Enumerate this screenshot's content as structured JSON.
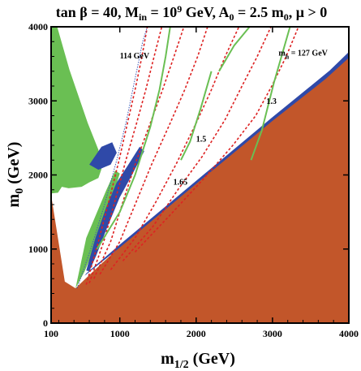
{
  "chart_data": {
    "type": "area",
    "title": {
      "main": "tan β = 40, M",
      "in_sub": "in",
      "part2": " = 10",
      "exp": "9",
      "part3": " GeV, A",
      "a_sub": "0",
      "part4": " = 2.5 m",
      "m_sub": "0",
      "part5": ", μ > 0"
    },
    "xlabel": {
      "main": "m",
      "sub": "1/2",
      "unit": " (GeV)"
    },
    "ylabel": {
      "main": "m",
      "sub": "0",
      "unit": " (GeV)"
    },
    "xlim": [
      100,
      4000
    ],
    "ylim": [
      0,
      4000
    ],
    "xticks": [
      "100",
      "1000",
      "2000",
      "3000",
      "4000"
    ],
    "xtick_values": [
      100,
      1000,
      2000,
      3000,
      4000
    ],
    "yticks": [
      "0",
      "1000",
      "2000",
      "3000",
      "4000"
    ],
    "ytick_values": [
      0,
      1000,
      2000,
      3000,
      4000
    ],
    "colors": {
      "excluded": "#c2562a",
      "g_minus_2": "#6abf53",
      "relic_density": "#2f49a8",
      "higgs_mass": "#dd2222",
      "lep_higgs": "#6abf53",
      "frame": "#000000"
    },
    "regions": [
      {
        "name": "excluded",
        "color_key": "excluded",
        "points": [
          [
            100,
            0
          ],
          [
            4000,
            0
          ],
          [
            4000,
            3580
          ],
          [
            3000,
            2740
          ],
          [
            2000,
            1890
          ],
          [
            1000,
            1030
          ],
          [
            600,
            650
          ],
          [
            420,
            470
          ],
          [
            280,
            560
          ],
          [
            100,
            1730
          ]
        ]
      },
      {
        "name": "g-2",
        "color_key": "g_minus_2",
        "points": [
          [
            100,
            4000
          ],
          [
            180,
            4000
          ],
          [
            340,
            3420
          ],
          [
            580,
            2700
          ],
          [
            720,
            2340
          ],
          [
            760,
            2080
          ],
          [
            720,
            1960
          ],
          [
            600,
            1900
          ],
          [
            500,
            1840
          ],
          [
            330,
            1820
          ],
          [
            240,
            1840
          ],
          [
            190,
            1760
          ],
          [
            100,
            1750
          ]
        ]
      },
      {
        "name": "g-2-strip",
        "color_key": "g_minus_2",
        "points": [
          [
            420,
            470
          ],
          [
            560,
            1150
          ],
          [
            820,
            1790
          ],
          [
            940,
            2060
          ],
          [
            1000,
            2020
          ],
          [
            900,
            1700
          ],
          [
            700,
            1100
          ],
          [
            540,
            700
          ]
        ]
      },
      {
        "name": "relic-band",
        "color_key": "relic_density",
        "points": [
          [
            560,
            710
          ],
          [
            680,
            1150
          ],
          [
            820,
            1560
          ],
          [
            960,
            1900
          ],
          [
            1100,
            2120
          ],
          [
            1260,
            2380
          ],
          [
            1320,
            2320
          ],
          [
            1160,
            2000
          ],
          [
            1000,
            1700
          ],
          [
            830,
            1280
          ],
          [
            690,
            910
          ],
          [
            600,
            700
          ]
        ]
      },
      {
        "name": "relic-blob",
        "color_key": "relic_density",
        "points": [
          [
            600,
            2140
          ],
          [
            760,
            2380
          ],
          [
            900,
            2440
          ],
          [
            960,
            2300
          ],
          [
            880,
            2140
          ],
          [
            720,
            2070
          ]
        ]
      },
      {
        "name": "relic-edge",
        "color_key": "relic_density",
        "points": [
          [
            540,
            640
          ],
          [
            1000,
            1020
          ],
          [
            2000,
            1880
          ],
          [
            3000,
            2730
          ],
          [
            3700,
            3300
          ],
          [
            4000,
            3580
          ],
          [
            4000,
            3660
          ],
          [
            3750,
            3410
          ],
          [
            3000,
            2780
          ],
          [
            2000,
            1920
          ],
          [
            1000,
            1060
          ],
          [
            560,
            670
          ]
        ]
      }
    ],
    "lep_higgs_contour": {
      "label": "114 GeV",
      "x": [
        440,
        620,
        800,
        960,
        1080,
        1160,
        1240,
        1300,
        1360
      ],
      "y": [
        470,
        1000,
        1600,
        2200,
        2700,
        3100,
        3500,
        3800,
        4000
      ]
    },
    "higgs_mass_curves": [
      {
        "x": [
          560,
          720,
          870,
          990,
          1100,
          1200,
          1290,
          1360
        ],
        "y": [
          520,
          1100,
          1700,
          2200,
          2700,
          3150,
          3600,
          4000
        ]
      },
      {
        "x": [
          600,
          790,
          950,
          1080,
          1220,
          1340,
          1450,
          1550
        ],
        "y": [
          540,
          1100,
          1700,
          2200,
          2700,
          3150,
          3600,
          4000
        ]
      },
      {
        "x": [
          660,
          880,
          1060,
          1220,
          1400,
          1560,
          1710,
          1840
        ],
        "y": [
          600,
          1100,
          1700,
          2200,
          2700,
          3150,
          3600,
          4000
        ]
      },
      {
        "x": [
          740,
          1000,
          1220,
          1420,
          1660,
          1850,
          2020,
          2150
        ],
        "y": [
          660,
          1100,
          1650,
          2150,
          2700,
          3150,
          3600,
          4000
        ]
      },
      {
        "x": [
          880,
          1200,
          1480,
          1740,
          2000,
          2200,
          2380,
          2560
        ],
        "y": [
          720,
          1150,
          1650,
          2150,
          2700,
          3150,
          3600,
          4000
        ]
      },
      {
        "x": [
          1040,
          1430,
          1760,
          2080,
          2380,
          2600,
          2800,
          2980
        ],
        "y": [
          840,
          1300,
          1800,
          2250,
          2750,
          3200,
          3600,
          4000
        ]
      },
      {
        "x": [
          1200,
          1650,
          2100,
          2480,
          2780,
          2990,
          3180,
          3340
        ],
        "y": [
          960,
          1450,
          1950,
          2400,
          2800,
          3200,
          3600,
          4000
        ]
      }
    ],
    "green_lines": [
      {
        "label": "1.65",
        "x": [
          700,
          1000,
          1200,
          1400,
          1520,
          1600,
          1660
        ],
        "y": [
          1000,
          1500,
          2000,
          2650,
          3150,
          3600,
          4000
        ]
      },
      {
        "label": "1.5",
        "x": [
          1800,
          1920,
          2060,
          2200
        ],
        "y": [
          2200,
          2450,
          2900,
          3400
        ]
      },
      {
        "label": "1.3",
        "x": [
          2720,
          2860,
          3020,
          3230
        ],
        "y": [
          2200,
          2600,
          3250,
          4000
        ]
      },
      {
        "label": "",
        "x": [
          2300,
          2500,
          2700
        ],
        "y": [
          3400,
          3750,
          4000
        ]
      }
    ],
    "annotations": {
      "mh_main": "m",
      "mh_sub": "h",
      "mh_value": " = 127 GeV",
      "lep_label": "114 GeV",
      "labels": [
        "1.65",
        "1.5",
        "1.3"
      ]
    }
  }
}
